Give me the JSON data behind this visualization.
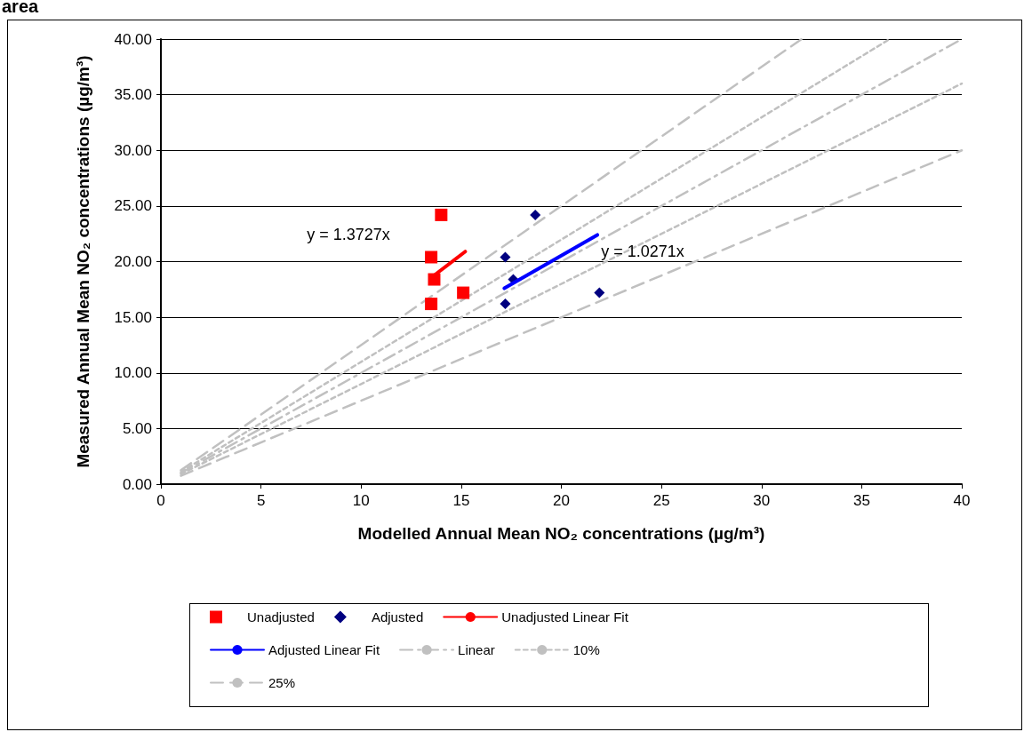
{
  "chart_data": {
    "type": "scatter",
    "title": "area",
    "xlabel": "Modelled Annual Mean NO₂ concentrations (µg/m³)",
    "ylabel": "Measured Annual Mean NO₂ concentrations (µg/m³)",
    "xlim": [
      0,
      40
    ],
    "xticks": [
      0,
      5,
      10,
      15,
      20,
      25,
      30,
      35,
      40
    ],
    "ylim": [
      0,
      40
    ],
    "yticks": [
      {
        "value": 0,
        "label": "0.00"
      },
      {
        "value": 5,
        "label": "5.00"
      },
      {
        "value": 10,
        "label": "10.00"
      },
      {
        "value": 15,
        "label": "15.00"
      },
      {
        "value": 20,
        "label": "20.00"
      },
      {
        "value": 25,
        "label": "25.00"
      },
      {
        "value": 30,
        "label": "30.00"
      },
      {
        "value": 35,
        "label": "35.00"
      },
      {
        "value": 40,
        "label": "40.00"
      }
    ],
    "grid": "y",
    "legend": "bottom",
    "series": [
      {
        "name": "Unadjusted",
        "type": "scatter",
        "marker": "square",
        "color": "#ff0000",
        "x": [
          14.0,
          13.5,
          13.65,
          13.5,
          15.1
        ],
        "values": [
          24.2,
          20.4,
          18.4,
          16.2,
          17.2
        ]
      },
      {
        "name": "Adjusted",
        "type": "scatter",
        "marker": "diamond",
        "color": "#000080",
        "x": [
          18.7,
          17.2,
          17.6,
          17.2,
          21.9
        ],
        "values": [
          24.2,
          20.4,
          18.4,
          16.2,
          17.2
        ]
      },
      {
        "name": "Unadjusted Linear Fit",
        "type": "line",
        "line_style": "solid",
        "color": "#ff0000",
        "x": [
          13.6,
          15.2
        ],
        "values": [
          18.7,
          20.9
        ]
      },
      {
        "name": "Adjusted Linear Fit",
        "type": "line",
        "line_style": "solid",
        "color": "#0000ff",
        "x": [
          17.15,
          21.8
        ],
        "values": [
          17.6,
          22.4
        ]
      },
      {
        "name": "Linear",
        "type": "line",
        "line_style": "dashdot",
        "color": "#c0c0c0",
        "x": [
          1,
          40
        ],
        "values": [
          1,
          40
        ]
      },
      {
        "name": "10%",
        "type": "line",
        "line_style": "dotted",
        "color": "#c0c0c0",
        "x": [
          1,
          36.4
        ],
        "values": [
          1.1,
          40
        ]
      },
      {
        "name": "25%",
        "type": "line",
        "line_style": "dashed",
        "color": "#c0c0c0",
        "x": [
          1,
          32
        ],
        "values": [
          1.25,
          40
        ]
      },
      {
        "type": "line",
        "line_style": "dotted",
        "color": "#c0c0c0",
        "x": [
          1,
          40
        ],
        "values": [
          0.9,
          36
        ]
      },
      {
        "type": "line",
        "line_style": "dashed",
        "color": "#c0c0c0",
        "x": [
          1,
          40
        ],
        "values": [
          0.75,
          30
        ]
      }
    ],
    "annotations": [
      "y = 1.3727x",
      "y = 1.0271x"
    ]
  }
}
